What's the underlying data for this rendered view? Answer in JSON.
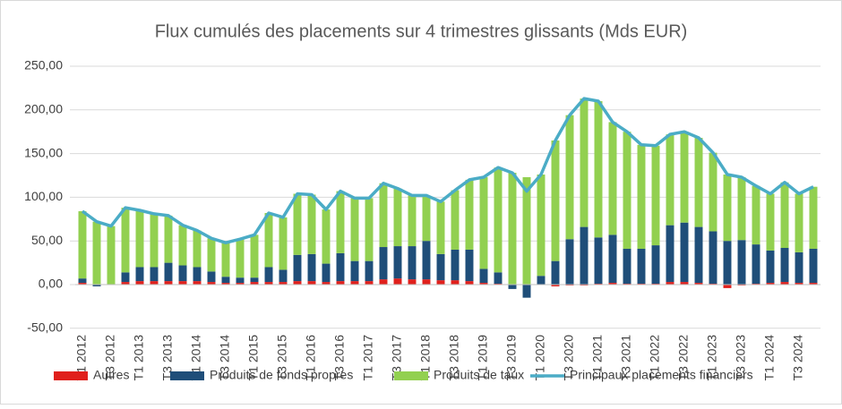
{
  "chart_data": {
    "type": "stacked_bar_line",
    "title": "Flux cumulés des placements sur 4 trimestres glissants (Mds EUR)",
    "categories": [
      "T1 2012",
      null,
      "T3 2012",
      null,
      "T1 2013",
      null,
      "T3 2013",
      null,
      "T1 2014",
      null,
      "T3 2014",
      null,
      "T1 2015",
      null,
      "T3 2015",
      null,
      "T1 2016",
      null,
      "T3 2016",
      null,
      "T1 2017",
      null,
      "T3 2017",
      null,
      "T1 2018",
      null,
      "T3 2018",
      null,
      "T1 2019",
      null,
      "T3 2019",
      null,
      "T1 2020",
      null,
      "T3 2020",
      null,
      "T1 2021",
      null,
      "T3 2021",
      null,
      "T1 2022",
      null,
      "T3 2022",
      null,
      "T1 2023",
      null,
      "T3 2023",
      null,
      "T1 2024",
      null,
      "T3 2024",
      null
    ],
    "series": [
      {
        "name": "Autres",
        "kind": "bar",
        "color": "#e0201c",
        "values": [
          2,
          0,
          0,
          3,
          4,
          4,
          4,
          4,
          4,
          3,
          2,
          2,
          3,
          3,
          3,
          4,
          4,
          3,
          4,
          4,
          4,
          6,
          7,
          6,
          6,
          5,
          5,
          4,
          2,
          1,
          0,
          0,
          0,
          -2,
          -1,
          -1,
          1,
          2,
          1,
          1,
          1,
          3,
          3,
          2,
          1,
          -4,
          -1,
          1,
          2,
          3,
          2,
          2
        ]
      },
      {
        "name": "Produits de fonds propres",
        "kind": "bar",
        "color": "#1f4e79",
        "values": [
          5,
          -2,
          0,
          11,
          16,
          16,
          21,
          18,
          16,
          12,
          7,
          6,
          5,
          17,
          14,
          30,
          31,
          21,
          32,
          23,
          23,
          37,
          37,
          38,
          44,
          30,
          35,
          36,
          16,
          13,
          -5,
          -15,
          10,
          27,
          52,
          66,
          53,
          55,
          40,
          40,
          44,
          65,
          68,
          64,
          60,
          50,
          51,
          45,
          37,
          39,
          35,
          39
        ]
      },
      {
        "name": "Produits de taux",
        "kind": "bar",
        "color": "#92d050",
        "values": [
          77,
          72,
          67,
          74,
          65,
          61,
          54,
          46,
          42,
          38,
          39,
          44,
          49,
          62,
          60,
          70,
          68,
          62,
          71,
          72,
          72,
          73,
          66,
          58,
          52,
          60,
          68,
          80,
          105,
          120,
          128,
          123,
          116,
          138,
          142,
          147,
          156,
          129,
          134,
          119,
          114,
          104,
          104,
          102,
          90,
          76,
          72,
          67,
          65,
          75,
          67,
          71
        ]
      },
      {
        "name": "Principaux placements financiers",
        "kind": "line",
        "color": "#4bacc6",
        "values": [
          84,
          72,
          67,
          88,
          85,
          81,
          79,
          68,
          62,
          53,
          48,
          52,
          57,
          82,
          77,
          104,
          103,
          86,
          107,
          99,
          99,
          116,
          110,
          102,
          102,
          95,
          108,
          120,
          123,
          134,
          128,
          107,
          126,
          165,
          194,
          213,
          210,
          186,
          175,
          160,
          159,
          172,
          175,
          168,
          151,
          126,
          123,
          113,
          104,
          117,
          104,
          112
        ]
      }
    ],
    "ylim": [
      -50,
      250
    ],
    "yticks": [
      {
        "value": -50,
        "label": "-50,00"
      },
      {
        "value": 0,
        "label": "0,00"
      },
      {
        "value": 50,
        "label": "50,00"
      },
      {
        "value": 100,
        "label": "100,00"
      },
      {
        "value": 150,
        "label": "150,00"
      },
      {
        "value": 200,
        "label": "200,00"
      },
      {
        "value": 250,
        "label": "250,00"
      }
    ],
    "grid": true,
    "legend": "bottom"
  }
}
